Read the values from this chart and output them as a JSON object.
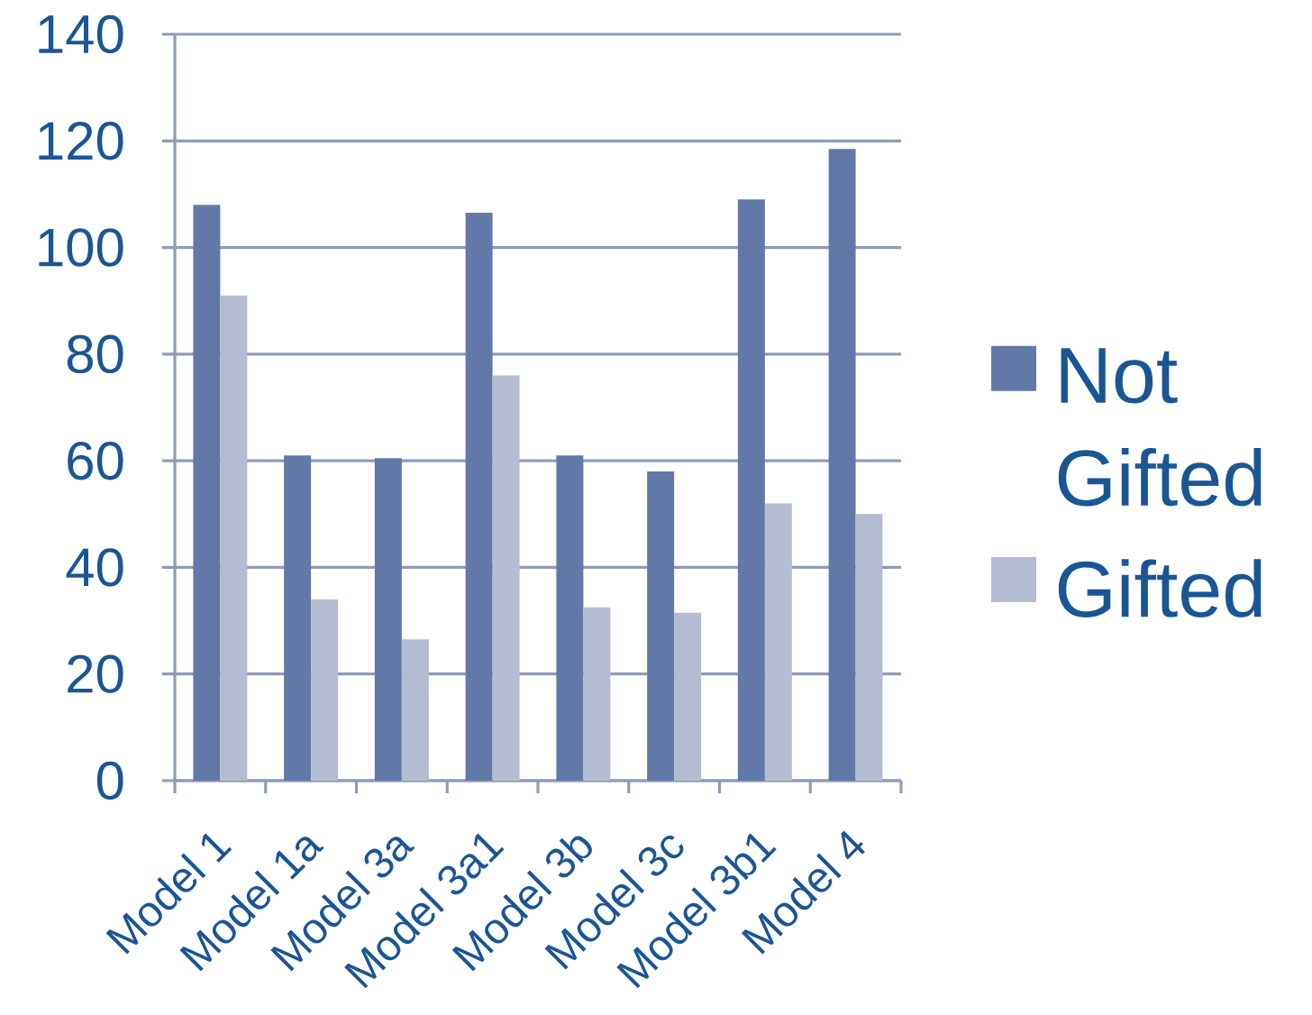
{
  "chart_data": {
    "type": "bar",
    "categories": [
      "Model 1",
      "Model 1a",
      "Model 3a",
      "Model 3a1",
      "Model 3b",
      "Model 3c",
      "Model 3b1",
      "Model 4"
    ],
    "series": [
      {
        "name": "Not Gifted",
        "color": "#6279a8",
        "values": [
          108,
          61,
          60.5,
          106.5,
          61,
          58,
          109,
          118.5
        ]
      },
      {
        "name": "Gifted",
        "color": "#b3bcd0",
        "values": [
          91,
          34,
          26.5,
          76,
          32.5,
          31.5,
          52,
          50
        ]
      }
    ],
    "ylim": [
      0,
      140
    ],
    "yticks": [
      0,
      20,
      40,
      60,
      80,
      100,
      120,
      140
    ],
    "grid": "y",
    "legend": "right"
  }
}
